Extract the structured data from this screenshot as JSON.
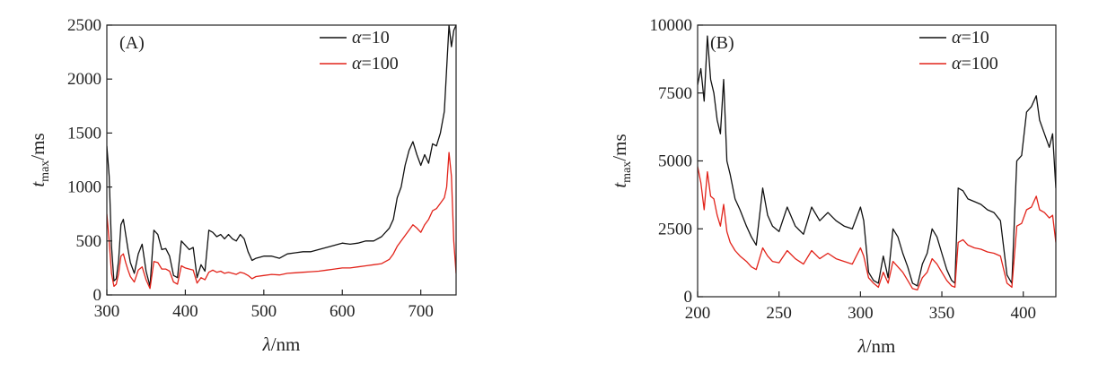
{
  "chart_data": [
    {
      "type": "line",
      "panel_label": "(A)",
      "xlabel": "λ/nm",
      "ylabel": "t_max/ms",
      "xlim": [
        300,
        745
      ],
      "ylim": [
        0,
        2500
      ],
      "xticks": [
        300,
        400,
        500,
        600,
        700
      ],
      "yticks": [
        0,
        500,
        1000,
        1500,
        2000,
        2500
      ],
      "legend_position": "top-right",
      "series": [
        {
          "name": "α=10",
          "color": "#111111",
          "x": [
            300,
            303,
            306,
            309,
            312,
            315,
            318,
            321,
            324,
            327,
            330,
            335,
            340,
            345,
            350,
            355,
            360,
            365,
            370,
            375,
            380,
            385,
            390,
            395,
            400,
            405,
            410,
            415,
            420,
            425,
            430,
            435,
            440,
            445,
            450,
            455,
            460,
            465,
            470,
            475,
            480,
            485,
            490,
            500,
            510,
            520,
            530,
            540,
            550,
            560,
            570,
            580,
            590,
            600,
            610,
            620,
            630,
            640,
            650,
            660,
            665,
            670,
            675,
            680,
            685,
            690,
            695,
            700,
            705,
            710,
            715,
            720,
            725,
            730,
            733,
            736,
            739,
            742,
            745
          ],
          "y": [
            1380,
            1100,
            450,
            130,
            150,
            320,
            650,
            700,
            560,
            420,
            300,
            200,
            380,
            470,
            220,
            80,
            600,
            560,
            420,
            430,
            360,
            180,
            160,
            500,
            460,
            420,
            440,
            160,
            280,
            220,
            600,
            580,
            540,
            560,
            520,
            560,
            520,
            500,
            560,
            520,
            400,
            320,
            340,
            360,
            360,
            340,
            380,
            390,
            400,
            400,
            420,
            440,
            460,
            480,
            470,
            480,
            500,
            500,
            540,
            620,
            700,
            900,
            1000,
            1200,
            1340,
            1420,
            1300,
            1200,
            1300,
            1220,
            1400,
            1380,
            1500,
            1700,
            2100,
            2500,
            2300,
            2450,
            2500
          ]
        },
        {
          "name": "α=100",
          "color": "#e2231a",
          "x": [
            300,
            303,
            306,
            309,
            312,
            315,
            318,
            321,
            324,
            327,
            330,
            335,
            340,
            345,
            350,
            355,
            360,
            365,
            370,
            375,
            380,
            385,
            390,
            395,
            400,
            405,
            410,
            415,
            420,
            425,
            430,
            435,
            440,
            445,
            450,
            455,
            460,
            465,
            470,
            475,
            480,
            485,
            490,
            500,
            510,
            520,
            530,
            540,
            550,
            560,
            570,
            580,
            590,
            600,
            610,
            620,
            630,
            640,
            650,
            660,
            665,
            670,
            675,
            680,
            685,
            690,
            695,
            700,
            705,
            710,
            715,
            720,
            725,
            730,
            733,
            736,
            739,
            742,
            745
          ],
          "y": [
            750,
            500,
            200,
            80,
            100,
            200,
            360,
            380,
            300,
            230,
            170,
            120,
            230,
            260,
            140,
            60,
            310,
            300,
            240,
            240,
            220,
            120,
            100,
            270,
            250,
            240,
            230,
            110,
            160,
            140,
            210,
            230,
            210,
            220,
            200,
            210,
            200,
            190,
            210,
            200,
            180,
            150,
            170,
            180,
            190,
            185,
            200,
            205,
            210,
            215,
            220,
            230,
            240,
            250,
            250,
            260,
            270,
            280,
            290,
            330,
            380,
            450,
            500,
            550,
            600,
            650,
            620,
            580,
            650,
            700,
            780,
            800,
            850,
            900,
            1000,
            1320,
            1100,
            500,
            200
          ]
        }
      ]
    },
    {
      "type": "line",
      "panel_label": "(B)",
      "xlabel": "λ/nm",
      "ylabel": "t_max/ms",
      "xlim": [
        200,
        420
      ],
      "ylim": [
        0,
        10000
      ],
      "xticks": [
        200,
        250,
        300,
        350,
        400
      ],
      "yticks": [
        0,
        2500,
        5000,
        7500,
        10000
      ],
      "legend_position": "top-right",
      "series": [
        {
          "name": "α=10",
          "color": "#111111",
          "x": [
            200,
            202,
            204,
            206,
            208,
            210,
            212,
            214,
            216,
            218,
            220,
            223,
            226,
            230,
            233,
            236,
            240,
            243,
            246,
            250,
            255,
            260,
            265,
            270,
            275,
            280,
            285,
            290,
            295,
            300,
            302,
            305,
            308,
            311,
            314,
            317,
            320,
            323,
            326,
            329,
            332,
            335,
            338,
            341,
            344,
            347,
            350,
            353,
            356,
            358,
            360,
            363,
            366,
            370,
            374,
            378,
            382,
            386,
            390,
            393,
            396,
            399,
            402,
            405,
            408,
            410,
            413,
            416,
            418,
            420
          ],
          "y": [
            7800,
            8400,
            7200,
            9600,
            8000,
            7500,
            6500,
            6000,
            8000,
            5000,
            4500,
            3600,
            3200,
            2600,
            2200,
            1900,
            4000,
            3000,
            2600,
            2400,
            3300,
            2600,
            2300,
            3300,
            2800,
            3100,
            2800,
            2600,
            2500,
            3300,
            2800,
            900,
            600,
            500,
            1500,
            700,
            2500,
            2200,
            1600,
            1100,
            500,
            400,
            1200,
            1600,
            2500,
            2200,
            1600,
            1000,
            600,
            500,
            4000,
            3900,
            3600,
            3500,
            3400,
            3200,
            3100,
            2800,
            800,
            500,
            5000,
            5200,
            6800,
            7000,
            7400,
            6500,
            6000,
            5500,
            6000,
            4000
          ]
        },
        {
          "name": "α=100",
          "color": "#e2231a",
          "x": [
            200,
            202,
            204,
            206,
            208,
            210,
            212,
            214,
            216,
            218,
            220,
            223,
            226,
            230,
            233,
            236,
            240,
            243,
            246,
            250,
            255,
            260,
            265,
            270,
            275,
            280,
            285,
            290,
            295,
            300,
            302,
            305,
            308,
            311,
            314,
            317,
            320,
            323,
            326,
            329,
            332,
            335,
            338,
            341,
            344,
            347,
            350,
            353,
            356,
            358,
            360,
            363,
            366,
            370,
            374,
            378,
            382,
            386,
            390,
            393,
            396,
            399,
            402,
            405,
            408,
            410,
            413,
            416,
            418,
            420
          ],
          "y": [
            4800,
            4200,
            3200,
            4600,
            3700,
            3600,
            3000,
            2600,
            3400,
            2400,
            2000,
            1700,
            1500,
            1300,
            1100,
            1000,
            1800,
            1500,
            1300,
            1250,
            1700,
            1400,
            1200,
            1700,
            1400,
            1600,
            1400,
            1300,
            1200,
            1800,
            1500,
            700,
            500,
            350,
            900,
            500,
            1300,
            1100,
            900,
            600,
            300,
            250,
            700,
            900,
            1400,
            1200,
            900,
            600,
            400,
            350,
            2000,
            2100,
            1900,
            1800,
            1750,
            1650,
            1600,
            1500,
            500,
            350,
            2600,
            2700,
            3200,
            3300,
            3700,
            3200,
            3100,
            2900,
            3000,
            2000
          ]
        }
      ]
    }
  ]
}
